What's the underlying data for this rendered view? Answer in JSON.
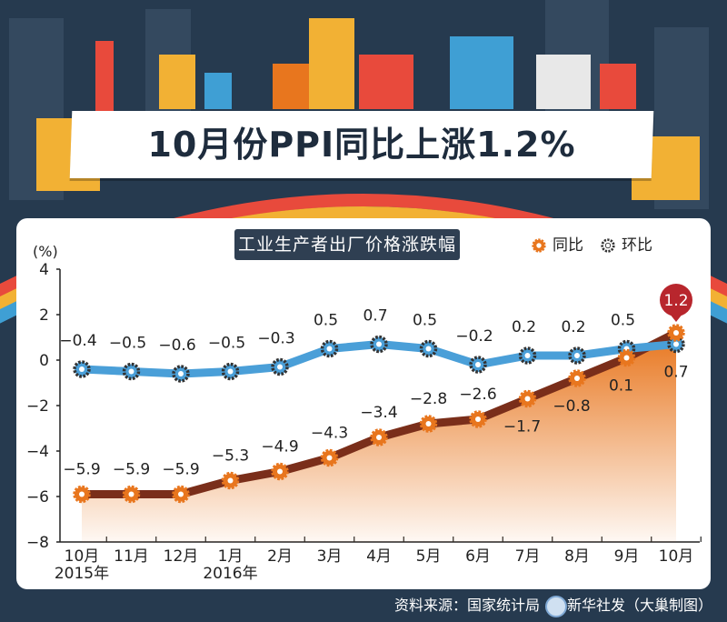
{
  "title": "10月份PPI同比上涨1.2%",
  "subtitle": "工业生产者出厂价格涨跌幅",
  "source": "资料来源：国家统计局",
  "credit": "新华社发（大巢制图）",
  "colors": {
    "yoy": "#e8761e",
    "mom": "#4a9fd8",
    "yoy_line": "#7a2e1a",
    "mom_gear": "#333333",
    "highlight": "#b8262d"
  },
  "chart_data": {
    "type": "line",
    "ylabel": "(%)",
    "ylim": [
      -8,
      4
    ],
    "yticks": [
      "4",
      "2",
      "0",
      "−2",
      "−4",
      "−6",
      "−8"
    ],
    "ytick_values": [
      4,
      2,
      0,
      -2,
      -4,
      -6,
      -8
    ],
    "categories": [
      "10月",
      "11月",
      "12月",
      "1月",
      "2月",
      "3月",
      "4月",
      "5月",
      "6月",
      "7月",
      "8月",
      "9月",
      "10月"
    ],
    "year_labels": [
      {
        "index": 0,
        "text": "2015年"
      },
      {
        "index": 3,
        "text": "2016年"
      }
    ],
    "series": [
      {
        "name": "同比",
        "values": [
          -5.9,
          -5.9,
          -5.9,
          -5.3,
          -4.9,
          -4.3,
          -3.4,
          -2.8,
          -2.6,
          -1.7,
          -0.8,
          0.1,
          1.2
        ],
        "labels": [
          "−5.9",
          "−5.9",
          "−5.9",
          "−5.3",
          "−4.9",
          "−4.3",
          "−3.4",
          "−2.8",
          "−2.6",
          "−1.7",
          "−0.8",
          "0.1",
          "1.2"
        ]
      },
      {
        "name": "环比",
        "values": [
          -0.4,
          -0.5,
          -0.6,
          -0.5,
          -0.3,
          0.5,
          0.7,
          0.5,
          -0.2,
          0.2,
          0.2,
          0.5,
          0.7
        ],
        "labels": [
          "−0.4",
          "−0.5",
          "−0.6",
          "−0.5",
          "−0.3",
          "0.5",
          "0.7",
          "0.5",
          "−0.2",
          "0.2",
          "0.2",
          "0.5",
          "0.7"
        ]
      }
    ],
    "legend": "top-right",
    "grid": false
  }
}
